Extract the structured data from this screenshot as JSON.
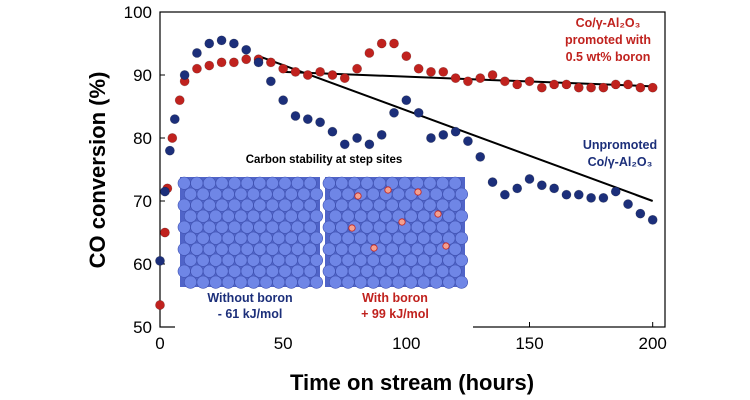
{
  "chart_data": {
    "type": "scatter",
    "xlabel": "Time on stream (hours)",
    "ylabel": "CO conversion (%)",
    "xlim": [
      0,
      205
    ],
    "ylim": [
      50,
      100
    ],
    "xticks": [
      "0",
      "50",
      "100",
      "150",
      "200"
    ],
    "yticks": [
      "50",
      "60",
      "70",
      "80",
      "90",
      "100"
    ],
    "grid": false,
    "legend": "annotations",
    "colors": {
      "promoted": "#c0221e",
      "unpromoted": "#1c2f7a",
      "trend": "#000000",
      "atom": "#6f86e6"
    },
    "series": [
      {
        "key": "promoted",
        "color": "#c0221e",
        "x": [
          0,
          2,
          3,
          5,
          8,
          10,
          15,
          20,
          25,
          30,
          35,
          40,
          45,
          50,
          55,
          60,
          65,
          70,
          75,
          80,
          85,
          90,
          95,
          100,
          105,
          110,
          115,
          120,
          125,
          130,
          135,
          140,
          145,
          150,
          155,
          160,
          165,
          170,
          175,
          180,
          185,
          190,
          195,
          200
        ],
        "y": [
          53.5,
          65,
          72,
          80,
          86,
          89,
          91,
          91.5,
          92,
          92,
          92.5,
          92.5,
          92,
          91,
          90.5,
          90,
          90.5,
          90,
          89.5,
          91,
          93.5,
          95,
          95,
          93,
          91,
          90.5,
          90.5,
          89.5,
          89,
          89.5,
          90,
          89,
          88.5,
          89,
          88,
          88.5,
          88.5,
          88,
          88,
          88,
          88.5,
          88.5,
          88,
          88
        ]
      },
      {
        "key": "unpromoted",
        "color": "#1c2f7a",
        "x": [
          0,
          2,
          4,
          6,
          10,
          15,
          20,
          25,
          30,
          35,
          40,
          45,
          50,
          55,
          60,
          65,
          70,
          75,
          80,
          85,
          90,
          95,
          100,
          105,
          110,
          115,
          120,
          125,
          130,
          135,
          140,
          145,
          150,
          155,
          160,
          165,
          170,
          175,
          180,
          185,
          190,
          195,
          200
        ],
        "y": [
          60.5,
          71.5,
          78,
          83,
          90,
          93.5,
          95,
          95.5,
          95,
          94,
          92,
          89,
          86,
          83.5,
          83,
          82.5,
          81,
          79,
          80,
          79,
          80.5,
          84,
          86,
          84,
          80,
          80.5,
          81,
          79.5,
          77,
          73,
          71,
          72,
          73.5,
          72.5,
          72,
          71,
          71,
          70.5,
          70.5,
          71.5,
          69.5,
          68,
          67
        ]
      }
    ],
    "trendlines": [
      {
        "key": "promoted",
        "x": [
          50,
          200
        ],
        "y": [
          90.5,
          88.2
        ]
      },
      {
        "key": "unpromoted",
        "x": [
          40,
          200
        ],
        "y": [
          93,
          70
        ]
      }
    ],
    "annotations": {
      "promoted_label": [
        "Co/γ-Al₂O₃",
        "promoted with",
        "0.5 wt% boron"
      ],
      "unpromoted_label": [
        "Unpromoted",
        "Co/γ-Al₂O₃"
      ]
    },
    "inset": {
      "title": "Carbon stability at step sites",
      "left_caption": [
        "Without boron",
        "- 61 kJ/mol"
      ],
      "right_caption": [
        "With boron",
        "+ 99 kJ/mol"
      ]
    }
  }
}
